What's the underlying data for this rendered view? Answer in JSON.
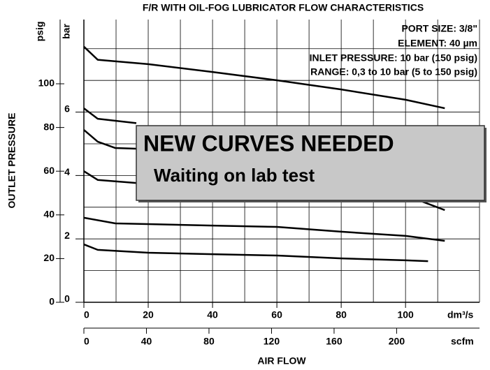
{
  "chart_data": {
    "type": "line",
    "title": "F/R WITH OIL-FOG LUBRICATOR FLOW CHARACTERISTICS",
    "annotations": [
      "PORT SIZE: 3/8\"",
      "ELEMENT: 40 µm",
      "INLET PRESSURE: 10 bar (150 psig)",
      "RANGE: 0,3 to 10 bar (5 to 150 psig)"
    ],
    "overlay": {
      "heading": "NEW CURVES NEEDED",
      "text": "Waiting on lab test"
    },
    "y_label": "OUTLET PRESSURE",
    "x_label": "AIR FLOW",
    "y_unit": "psig",
    "y2_unit": "bar",
    "x_unit": "dm³/s",
    "x2_unit": "scfm",
    "xlim": [
      0,
      123
    ],
    "xticks": [
      0,
      20,
      40,
      60,
      80,
      100
    ],
    "xgridlines": [
      10,
      20,
      30,
      40,
      50,
      60,
      70,
      80,
      90,
      100,
      110,
      123
    ],
    "x2lim": [
      0,
      253
    ],
    "x2ticks": [
      0,
      40,
      80,
      120,
      160,
      200
    ],
    "ylim": [
      0,
      129.4
    ],
    "yticks": [
      0,
      20,
      40,
      60,
      80,
      100
    ],
    "y2lim": [
      0,
      8.92
    ],
    "y2ticks": [
      0,
      2,
      4,
      6
    ],
    "y2gridlines": [
      1,
      2,
      3,
      4,
      5,
      6,
      7,
      8
    ],
    "grid": true,
    "series": [
      {
        "color": "#000000",
        "x": [
          0,
          4.3,
          20,
          40,
          60,
          80,
          100,
          112.2
        ],
        "values": [
          117,
          111,
          109,
          105.4,
          101.6,
          97.4,
          92.7,
          88.8
        ]
      },
      {
        "color": "#000000",
        "x": [
          0,
          4.3,
          16.3
        ],
        "values": [
          88.8,
          84,
          82
        ]
      },
      {
        "color": "#000000",
        "x": [
          0,
          4.3,
          9.8,
          16.3
        ],
        "values": [
          78.9,
          73.5,
          70.6,
          70.3
        ]
      },
      {
        "color": "#000000",
        "x": [
          0,
          4.3,
          16.3,
          null,
          104.3,
          112.2
        ],
        "values": [
          60,
          56,
          54.6,
          null,
          46.6,
          42.2
        ]
      },
      {
        "color": "#000000",
        "x": [
          0,
          9.8,
          20,
          40,
          60,
          80,
          100,
          112.2
        ],
        "values": [
          38.7,
          36.1,
          35.8,
          35.1,
          34.5,
          32.3,
          30.4,
          28.1
        ]
      },
      {
        "color": "#000000",
        "x": [
          0,
          4.3,
          20,
          40,
          60,
          80,
          100,
          107
        ],
        "values": [
          26.5,
          24,
          22.7,
          22,
          21.4,
          20.1,
          19.2,
          18.8
        ]
      }
    ]
  }
}
